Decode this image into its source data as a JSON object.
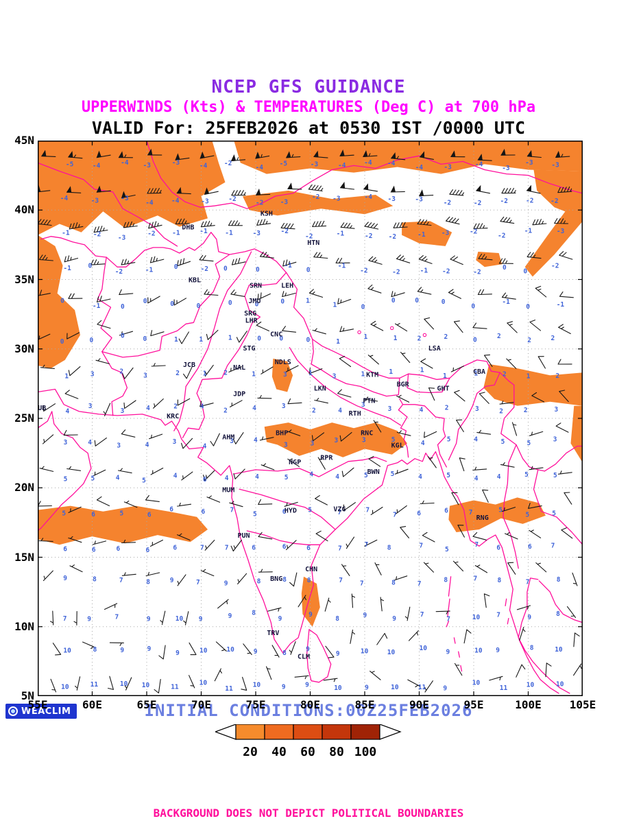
{
  "title": {
    "line1": "NCEP GFS GUIDANCE",
    "line2": "UPPERWINDS (Kts) & TEMPERATURES (Deg C) at 700 hPa",
    "line3": "VALID For: 25FEB2026 at 0530 IST /0000 UTC"
  },
  "axes": {
    "lat_labels": [
      "45N",
      "40N",
      "35N",
      "30N",
      "25N",
      "20N",
      "15N",
      "10N",
      "5N"
    ],
    "lon_labels": [
      "55E",
      "60E",
      "65E",
      "70E",
      "75E",
      "80E",
      "85E",
      "90E",
      "95E",
      "100E",
      "105E"
    ],
    "lon_range": [
      55,
      105
    ],
    "lat_range": [
      5,
      45
    ]
  },
  "stations": [
    {
      "label": "DHB",
      "lon": 68.8,
      "lat": 38.6
    },
    {
      "label": "KSH",
      "lon": 76.0,
      "lat": 39.6
    },
    {
      "label": "HTN",
      "lon": 80.3,
      "lat": 37.5
    },
    {
      "label": "KBL",
      "lon": 69.4,
      "lat": 34.8
    },
    {
      "label": "SRN",
      "lon": 75.0,
      "lat": 34.4
    },
    {
      "label": "LEH",
      "lon": 77.9,
      "lat": 34.4
    },
    {
      "label": "JMU",
      "lon": 74.9,
      "lat": 33.3
    },
    {
      "label": "SRG",
      "lon": 74.5,
      "lat": 32.4
    },
    {
      "label": "LHR",
      "lon": 74.6,
      "lat": 31.9
    },
    {
      "label": "CNC",
      "lon": 76.9,
      "lat": 30.9
    },
    {
      "label": "STG",
      "lon": 74.4,
      "lat": 29.9
    },
    {
      "label": "NDLS",
      "lon": 77.5,
      "lat": 28.9
    },
    {
      "label": "JCB",
      "lon": 68.9,
      "lat": 28.7
    },
    {
      "label": "NAL",
      "lon": 73.5,
      "lat": 28.5
    },
    {
      "label": "LKN",
      "lon": 80.9,
      "lat": 27.0
    },
    {
      "label": "KTM",
      "lon": 85.7,
      "lat": 28.0
    },
    {
      "label": "BGR",
      "lon": 88.5,
      "lat": 27.3
    },
    {
      "label": "GHT",
      "lon": 92.2,
      "lat": 27.0
    },
    {
      "label": "LSA",
      "lon": 91.4,
      "lat": 29.9
    },
    {
      "label": "CBA",
      "lon": 95.5,
      "lat": 28.2
    },
    {
      "label": "JDP",
      "lon": 73.5,
      "lat": 26.6
    },
    {
      "label": "PTN",
      "lon": 85.4,
      "lat": 26.1
    },
    {
      "label": "DUB",
      "lon": 55.2,
      "lat": 25.6
    },
    {
      "label": "KRC",
      "lon": 67.4,
      "lat": 25.0
    },
    {
      "label": "RTH",
      "lon": 84.1,
      "lat": 25.2
    },
    {
      "label": "RNC",
      "lon": 85.2,
      "lat": 23.8
    },
    {
      "label": "AHM",
      "lon": 72.5,
      "lat": 23.5
    },
    {
      "label": "BHP",
      "lon": 77.4,
      "lat": 23.8
    },
    {
      "label": "KGL",
      "lon": 88.0,
      "lat": 22.9
    },
    {
      "label": "NGP",
      "lon": 78.6,
      "lat": 21.7
    },
    {
      "label": "RPR",
      "lon": 81.5,
      "lat": 22.0
    },
    {
      "label": "BWN",
      "lon": 85.8,
      "lat": 21.0
    },
    {
      "label": "MUM",
      "lon": 72.5,
      "lat": 19.7
    },
    {
      "label": "HYD",
      "lon": 78.2,
      "lat": 18.2
    },
    {
      "label": "VZG",
      "lon": 82.7,
      "lat": 18.3
    },
    {
      "label": "PUN",
      "lon": 73.9,
      "lat": 16.4
    },
    {
      "label": "RNG",
      "lon": 95.8,
      "lat": 17.7
    },
    {
      "label": "BNG",
      "lon": 76.9,
      "lat": 13.3
    },
    {
      "label": "CHN",
      "lon": 80.1,
      "lat": 14.0
    },
    {
      "label": "TRV",
      "lon": 76.6,
      "lat": 9.4
    },
    {
      "label": "CLM",
      "lon": 79.4,
      "lat": 7.7
    }
  ],
  "legend": {
    "values": [
      "20",
      "40",
      "60",
      "80",
      "100"
    ],
    "colors": [
      "#f68b2c",
      "#ef6b20",
      "#dd4d13",
      "#c4360b",
      "#a02306"
    ]
  },
  "footer": {
    "logo": "WEACLIM",
    "initial_conditions": "INITIAL CONDITIONS:00Z25FEB2026",
    "disclaimer": "BACKGROUND DOES NOT DEPICT POLITICAL BOUNDARIES"
  },
  "colors": {
    "title1": "#8a2be2",
    "title2": "#ff00ff",
    "title3": "#000000",
    "coast": "#ff0f9b",
    "shade": "#f5832e",
    "grid": "#a8a8a8",
    "barb": "#161616",
    "temp_text": "#3f63d8",
    "init_text": "#6b7fe0",
    "disclaimer": "#ff0f9b",
    "station_text": "#14143c"
  },
  "field": {
    "grid_spacing_deg": 2.5,
    "temp_at_45N_degC": -4,
    "temp_at_5N_degC": 11,
    "jet_lat_N": 43.5,
    "jet_speed_kts": 55
  }
}
